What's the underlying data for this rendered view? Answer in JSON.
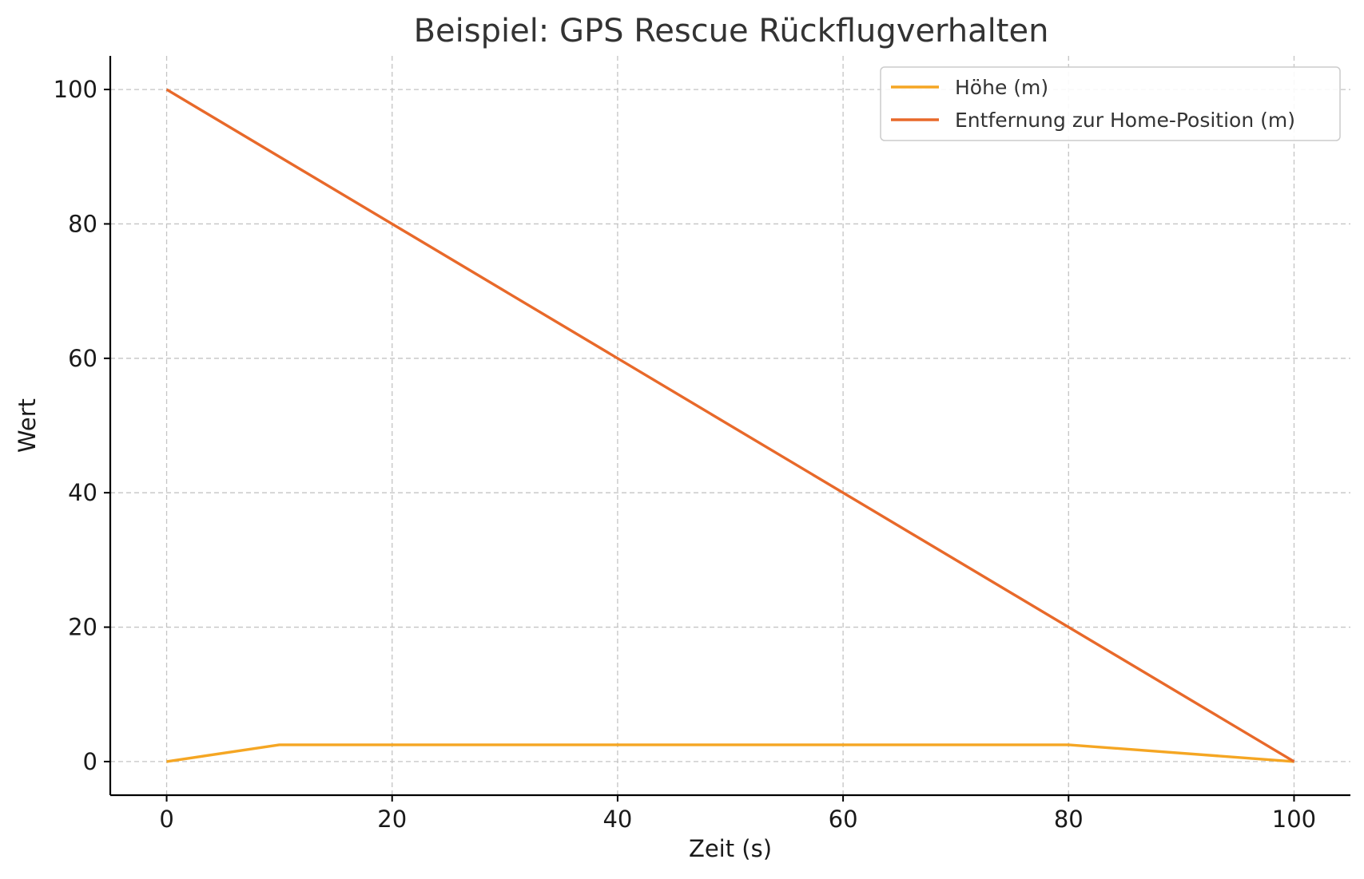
{
  "chart_data": {
    "type": "line",
    "title": "Beispiel: GPS Rescue Rückflugverhalten",
    "xlabel": "Zeit (s)",
    "ylabel": "Wert",
    "xlim": [
      -5,
      105
    ],
    "ylim": [
      -5,
      105
    ],
    "xticks": [
      0,
      20,
      40,
      60,
      80,
      100
    ],
    "yticks": [
      0,
      20,
      40,
      60,
      80,
      100
    ],
    "grid": true,
    "legend_position": "top-right",
    "series": [
      {
        "name": "Höhe (m)",
        "color": "#f5a623",
        "x": [
          0,
          10,
          80,
          100
        ],
        "y": [
          0,
          2.5,
          2.5,
          0
        ]
      },
      {
        "name": "Entfernung zur Home-Position (m)",
        "color": "#e8692a",
        "x": [
          0,
          100
        ],
        "y": [
          100,
          0
        ]
      }
    ]
  }
}
